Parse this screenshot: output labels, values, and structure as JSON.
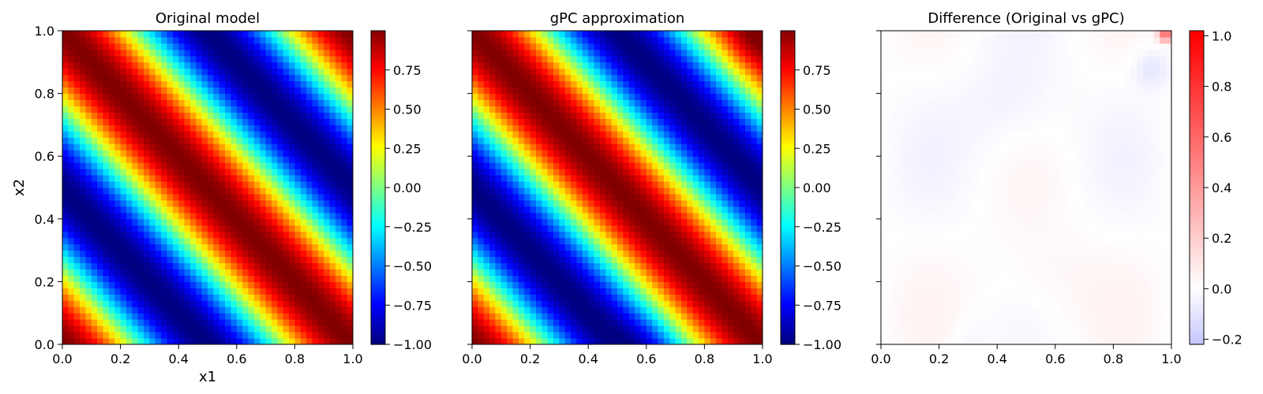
{
  "chart_data": [
    {
      "type": "heatmap",
      "title": "Original model",
      "xlabel": "x1",
      "ylabel": "x2",
      "xlim": [
        0.0,
        1.0
      ],
      "ylim": [
        0.0,
        1.0
      ],
      "x_ticks": [
        "0.0",
        "0.2",
        "0.4",
        "0.6",
        "0.8",
        "1.0"
      ],
      "y_ticks": [
        "0.0",
        "0.2",
        "0.4",
        "0.6",
        "0.8",
        "1.0"
      ],
      "grid_resolution": 50,
      "z_function": "sin(2*pi*(x1+x2) + pi/2)",
      "colormap": "jet",
      "colorbar": {
        "range": [
          -1.0,
          1.0
        ],
        "ticks": [
          "0.75",
          "0.50",
          "0.25",
          "0.00",
          "−0.25",
          "−0.50",
          "−0.75",
          "−1.00"
        ],
        "tick_values": [
          0.75,
          0.5,
          0.25,
          0.0,
          -0.25,
          -0.5,
          -0.75,
          -1.0
        ]
      }
    },
    {
      "type": "heatmap",
      "title": "gPC approximation",
      "xlabel": "",
      "ylabel": "",
      "xlim": [
        0.0,
        1.0
      ],
      "ylim": [
        0.0,
        1.0
      ],
      "x_ticks": [
        "0.0",
        "0.2",
        "0.4",
        "0.6",
        "0.8",
        "1.0"
      ],
      "y_ticks": [],
      "grid_resolution": 50,
      "z_function": "approximation of sin(2*pi*(x1+x2) + pi/2)",
      "colormap": "jet",
      "colorbar": {
        "range": [
          -1.0,
          1.0
        ],
        "ticks": [
          "0.75",
          "0.50",
          "0.25",
          "0.00",
          "−0.25",
          "−0.50",
          "−0.75",
          "−1.00"
        ],
        "tick_values": [
          0.75,
          0.5,
          0.25,
          0.0,
          -0.25,
          -0.5,
          -0.75,
          -1.0
        ]
      }
    },
    {
      "type": "heatmap",
      "title": "Difference (Original vs gPC)",
      "xlabel": "",
      "ylabel": "",
      "xlim": [
        0.0,
        1.0
      ],
      "ylim": [
        0.0,
        1.0
      ],
      "x_ticks": [
        "0.0",
        "0.2",
        "0.4",
        "0.6",
        "0.8",
        "1.0"
      ],
      "y_ticks": [],
      "grid_resolution": 50,
      "z_function": "original - gPC (small residual)",
      "colormap": "bwr",
      "colorbar": {
        "range": [
          -0.22,
          1.02
        ],
        "ticks": [
          "1.0",
          "0.8",
          "0.6",
          "0.4",
          "0.2",
          "0.0",
          "−0.2"
        ],
        "tick_values": [
          1.0,
          0.8,
          0.6,
          0.4,
          0.2,
          0.0,
          -0.2
        ]
      }
    }
  ]
}
